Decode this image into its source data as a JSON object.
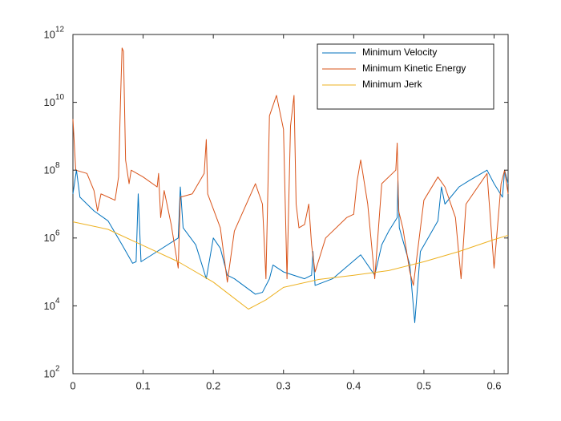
{
  "chart_data": {
    "type": "line",
    "yscale": "log",
    "grid": false,
    "legend_position": "northeast",
    "xlim": [
      0,
      0.62
    ],
    "ylim": [
      100,
      1000000000000.0
    ],
    "xticks": [
      0,
      0.1,
      0.2,
      0.3,
      0.4,
      0.5,
      0.6
    ],
    "yticks": [
      {
        "value": 100,
        "label": "10",
        "exponent": "2"
      },
      {
        "value": 10000,
        "label": "10",
        "exponent": "4"
      },
      {
        "value": 1000000,
        "label": "10",
        "exponent": "6"
      },
      {
        "value": 100000000,
        "label": "10",
        "exponent": "8"
      },
      {
        "value": 10000000000,
        "label": "10",
        "exponent": "10"
      },
      {
        "value": 1000000000000,
        "label": "10",
        "exponent": "12"
      }
    ],
    "series": [
      {
        "name": "Minimum Velocity",
        "color": "#0072bd",
        "x": [
          0,
          0.005,
          0.01,
          0.03,
          0.05,
          0.07,
          0.085,
          0.09,
          0.093,
          0.097,
          0.12,
          0.15,
          0.153,
          0.157,
          0.175,
          0.19,
          0.2,
          0.21,
          0.22,
          0.23,
          0.26,
          0.27,
          0.28,
          0.285,
          0.3,
          0.33,
          0.34,
          0.342,
          0.345,
          0.37,
          0.41,
          0.43,
          0.44,
          0.45,
          0.462,
          0.463,
          0.465,
          0.48,
          0.487,
          0.495,
          0.52,
          0.525,
          0.53,
          0.55,
          0.565,
          0.59,
          0.6,
          0.612,
          0.615,
          0.62
        ],
        "values": [
          20000000.0,
          100000000.0,
          16000000.0,
          6300000.0,
          3200000.0,
          630000.0,
          180000.0,
          200000.0,
          20000000.0,
          200000.0,
          400000.0,
          1000000.0,
          32000000.0,
          2000000.0,
          630000.0,
          63000.0,
          1000000.0,
          500000.0,
          80000.0,
          63000.0,
          22000.0,
          25000.0,
          63000.0,
          160000.0,
          100000.0,
          63000.0,
          80000.0,
          400000.0,
          40000.0,
          63000.0,
          320000.0,
          80000.0,
          630000.0,
          1600000.0,
          4000000.0,
          50000000.0,
          2000000.0,
          160000.0,
          3200.0,
          400000.0,
          3200000.0,
          32000000.0,
          10000000.0,
          32000000.0,
          50000000.0,
          100000000.0,
          40000000.0,
          16000000.0,
          100000000.0,
          40000000.0
        ]
      },
      {
        "name": "Minimum Kinetic Energy",
        "color": "#d95319",
        "x": [
          0,
          0.004,
          0.02,
          0.03,
          0.035,
          0.04,
          0.06,
          0.065,
          0.068,
          0.07,
          0.072,
          0.075,
          0.08,
          0.083,
          0.1,
          0.12,
          0.122,
          0.125,
          0.13,
          0.14,
          0.15,
          0.153,
          0.17,
          0.187,
          0.19,
          0.192,
          0.21,
          0.22,
          0.23,
          0.26,
          0.27,
          0.275,
          0.28,
          0.29,
          0.3,
          0.305,
          0.31,
          0.315,
          0.318,
          0.322,
          0.33,
          0.336,
          0.34,
          0.345,
          0.36,
          0.39,
          0.4,
          0.405,
          0.41,
          0.42,
          0.43,
          0.44,
          0.46,
          0.462,
          0.464,
          0.47,
          0.48,
          0.485,
          0.5,
          0.52,
          0.53,
          0.545,
          0.553,
          0.56,
          0.59,
          0.6,
          0.61,
          0.615,
          0.62
        ],
        "values": [
          3200000000.0,
          100000000.0,
          80000000.0,
          25000000.0,
          6300000.0,
          20000000.0,
          13000000.0,
          63000000.0,
          16000000000.0,
          400000000000.0,
          320000000000.0,
          200000000.0,
          40000000.0,
          100000000.0,
          63000000.0,
          32000000.0,
          80000000.0,
          4000000.0,
          25000000.0,
          2500000.0,
          130000.0,
          16000000.0,
          20000000.0,
          80000000.0,
          800000000.0,
          20000000.0,
          2000000.0,
          50000.0,
          1600000.0,
          40000000.0,
          10000000.0,
          63000.0,
          4000000000.0,
          16000000000.0,
          1600000000.0,
          63000.0,
          2000000000.0,
          16000000000.0,
          10000000.0,
          2000000.0,
          2500000.0,
          10000000.0,
          630000.0,
          100000.0,
          1000000.0,
          4000000.0,
          5000000.0,
          50000000.0,
          200000000.0,
          10000000.0,
          63000.0,
          40000000.0,
          100000000.0,
          630000000.0,
          6300000.0,
          2000000.0,
          100000.0,
          40000.0,
          13000000.0,
          63000000.0,
          32000000.0,
          4000000.0,
          63000.0,
          10000000.0,
          80000000.0,
          130000.0,
          40000000.0,
          100000000.0,
          20000000.0
        ]
      },
      {
        "name": "Minimum Jerk",
        "color": "#edb120",
        "x": [
          0,
          0.05,
          0.1,
          0.15,
          0.2,
          0.225,
          0.25,
          0.275,
          0.3,
          0.35,
          0.4,
          0.45,
          0.5,
          0.55,
          0.6,
          0.62
        ],
        "values": [
          3000000.0,
          1800000.0,
          600000.0,
          200000.0,
          50000.0,
          20000.0,
          8000.0,
          15000.0,
          35000.0,
          60000.0,
          80000.0,
          110000.0,
          200000.0,
          400000.0,
          900000.0,
          1200000.0
        ]
      }
    ]
  }
}
